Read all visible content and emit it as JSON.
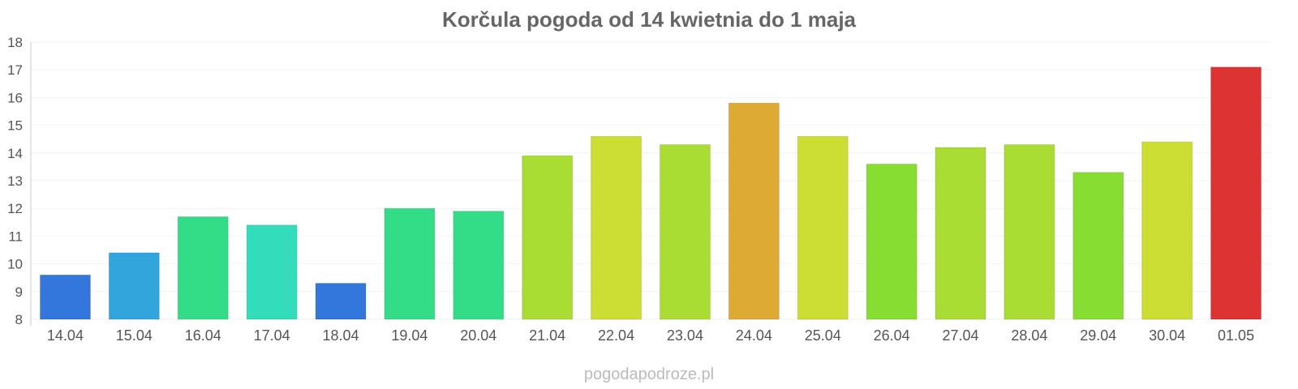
{
  "chart_data": {
    "type": "bar",
    "title": "Korčula pogoda od 14 kwietnia do 1 maja",
    "xlabel": "",
    "ylabel": "",
    "ylim": [
      8,
      18
    ],
    "yticks": [
      "8",
      "9",
      "10",
      "11",
      "12",
      "13",
      "14",
      "15",
      "16",
      "17",
      "18"
    ],
    "grid": true,
    "legend": "none",
    "categories": [
      "14.04",
      "15.04",
      "16.04",
      "17.04",
      "18.04",
      "19.04",
      "20.04",
      "21.04",
      "22.04",
      "23.04",
      "24.04",
      "25.04",
      "26.04",
      "27.04",
      "28.04",
      "29.04",
      "30.04",
      "01.05"
    ],
    "values": [
      9.6,
      10.4,
      11.7,
      11.4,
      9.3,
      12.0,
      11.9,
      13.9,
      14.6,
      14.3,
      15.8,
      14.6,
      13.6,
      14.2,
      14.3,
      13.3,
      14.4,
      17.1
    ],
    "colors": [
      "#3377dd",
      "#33a5dd",
      "#33dd88",
      "#33ddbb",
      "#3377dd",
      "#33dd88",
      "#33dd88",
      "#aadd33",
      "#ccdd33",
      "#aadd33",
      "#ddaa33",
      "#ccdd33",
      "#88dd33",
      "#aadd33",
      "#aadd33",
      "#88dd33",
      "#ccdd33",
      "#dd3333"
    ]
  },
  "footer": {
    "watermark": "pogodapodroze.pl"
  }
}
